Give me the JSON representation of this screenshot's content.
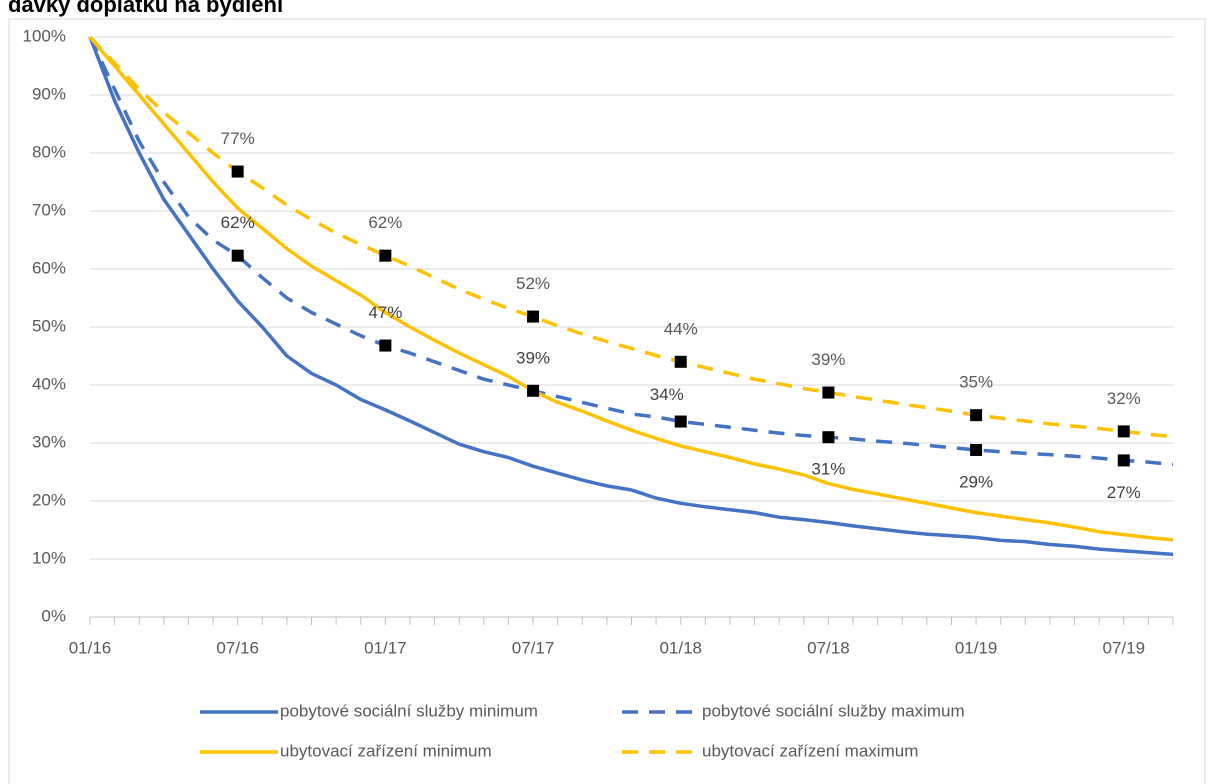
{
  "chart_data": {
    "type": "line",
    "title": "dávky doplatku na bydlení",
    "categories": [
      "01/16",
      null,
      null,
      null,
      null,
      null,
      "07/16",
      null,
      null,
      null,
      null,
      null,
      "01/17",
      null,
      null,
      null,
      null,
      null,
      "07/17",
      null,
      null,
      null,
      null,
      null,
      "01/18",
      null,
      null,
      null,
      null,
      null,
      "07/18",
      null,
      null,
      null,
      null,
      null,
      "01/19",
      null,
      null,
      null,
      null,
      null,
      "07/19",
      null,
      null
    ],
    "ylim": [
      0,
      100
    ],
    "yticks": [
      {
        "value": 0,
        "label": "0%"
      },
      {
        "value": 10,
        "label": "10%"
      },
      {
        "value": 20,
        "label": "20%"
      },
      {
        "value": 30,
        "label": "30%"
      },
      {
        "value": 40,
        "label": "40%"
      },
      {
        "value": 50,
        "label": "50%"
      },
      {
        "value": 60,
        "label": "60%"
      },
      {
        "value": 70,
        "label": "70%"
      },
      {
        "value": 80,
        "label": "80%"
      },
      {
        "value": 90,
        "label": "90%"
      },
      {
        "value": 100,
        "label": "100%"
      }
    ],
    "grid": true,
    "series": [
      {
        "name": "pobytové sociální služby minimum",
        "color": "#4472c4",
        "dashed": false,
        "values": [
          100,
          89,
          80,
          72,
          66,
          60,
          54.5,
          50,
          45,
          42,
          40,
          37.5,
          35.7,
          33.8,
          31.8,
          29.8,
          28.5,
          27.5,
          26,
          24.8,
          23.6,
          22.6,
          21.9,
          20.5,
          19.6,
          19,
          18.5,
          18,
          17.2,
          16.8,
          16.3,
          15.7,
          15.2,
          14.7,
          14.3,
          14,
          13.7,
          13.2,
          13,
          12.5,
          12.2,
          11.7,
          11.4,
          11.1,
          10.8
        ]
      },
      {
        "name": "pobytové sociální služby maximum",
        "color": "#4472c4",
        "dashed": true,
        "values": [
          100,
          91,
          82,
          75,
          69,
          65,
          62.3,
          58.5,
          55,
          52.5,
          50.5,
          48.5,
          46.8,
          45.5,
          44,
          42.5,
          41,
          40,
          39,
          38,
          37,
          36,
          35,
          34.5,
          33.7,
          33.2,
          32.7,
          32.2,
          31.7,
          31.3,
          31,
          30.7,
          30.3,
          30,
          29.6,
          29.2,
          28.8,
          28.5,
          28.2,
          28,
          27.7,
          27.4,
          27,
          26.7,
          26.3
        ],
        "value_labels": [
          null,
          null,
          null,
          null,
          null,
          null,
          "62%",
          null,
          null,
          null,
          null,
          null,
          "47%",
          null,
          null,
          null,
          null,
          null,
          "39%",
          null,
          null,
          null,
          null,
          null,
          "34%",
          null,
          null,
          null,
          null,
          null,
          "31%",
          null,
          null,
          null,
          null,
          null,
          "29%",
          null,
          null,
          null,
          null,
          null,
          "27%",
          null,
          null
        ]
      },
      {
        "name": "ubytovací zařízení minimum",
        "color": "#ffc000",
        "dashed": false,
        "values": [
          100,
          95,
          90,
          85,
          80,
          75,
          70.5,
          67,
          63.5,
          60.5,
          58,
          55.5,
          52.5,
          50,
          47.7,
          45.5,
          43.5,
          41.5,
          39,
          37,
          35.5,
          33.8,
          32.2,
          30.8,
          29.5,
          28.5,
          27.5,
          26.4,
          25.5,
          24.5,
          23,
          22,
          21.2,
          20.4,
          19.6,
          18.8,
          18,
          17.4,
          16.8,
          16.2,
          15.5,
          14.7,
          14.2,
          13.7,
          13.3
        ]
      },
      {
        "name": "ubytovací zařízení maximum",
        "color": "#ffc000",
        "dashed": true,
        "values": [
          100,
          95.5,
          91,
          87,
          83.5,
          80,
          76.8,
          74,
          71,
          68.5,
          66.2,
          64.2,
          62.3,
          60.5,
          58.5,
          56.5,
          54.8,
          53.2,
          51.8,
          50.2,
          48.8,
          47.5,
          46.3,
          45.1,
          44,
          43,
          42,
          41,
          40.2,
          39.4,
          38.7,
          38,
          37.4,
          36.7,
          36.1,
          35.5,
          34.8,
          34.3,
          33.8,
          33.3,
          32.9,
          32.5,
          32,
          31.5,
          31.1
        ],
        "value_labels": [
          null,
          null,
          null,
          null,
          null,
          null,
          "77%",
          null,
          null,
          null,
          null,
          null,
          "62%",
          null,
          null,
          null,
          null,
          null,
          "52%",
          null,
          null,
          null,
          null,
          null,
          "44%",
          null,
          null,
          null,
          null,
          null,
          "39%",
          null,
          null,
          null,
          null,
          null,
          "35%",
          null,
          null,
          null,
          null,
          null,
          "32%",
          null,
          null
        ]
      }
    ]
  }
}
